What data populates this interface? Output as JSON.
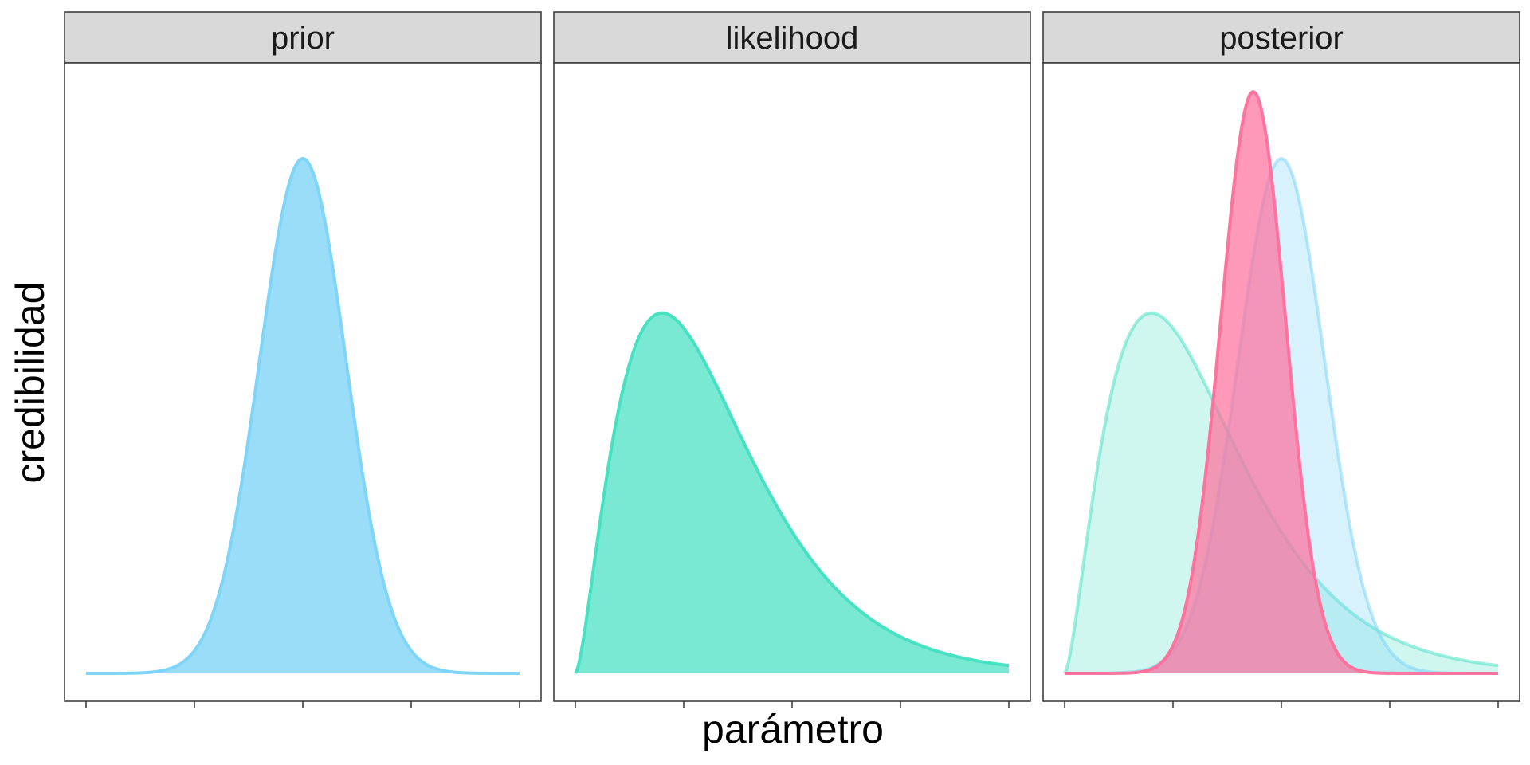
{
  "chart_data": {
    "type": "area",
    "xlabel": "parámetro",
    "ylabel": "credibilidad",
    "x_tick_labels": "none",
    "y_tick_labels": "none",
    "xlim": [
      0,
      1
    ],
    "ylim": [
      0,
      1.1
    ],
    "grid": false,
    "legend": "none",
    "panels": [
      {
        "strip_label": "prior",
        "series": [
          {
            "distribution": "normal",
            "mean": 0.5,
            "sd": 0.1,
            "peak": 1.0,
            "color": "#7FD5F7",
            "fill_opacity": 0.8
          }
        ]
      },
      {
        "strip_label": "likelihood",
        "series": [
          {
            "distribution": "gamma-shaped",
            "mode": 0.2,
            "shape": 2.6,
            "peak": 0.7,
            "color": "#40E0C0",
            "fill_opacity": 0.7
          }
        ]
      },
      {
        "strip_label": "posterior",
        "series": [
          {
            "distribution": "gamma-shaped",
            "mode": 0.2,
            "shape": 2.6,
            "peak": 0.7,
            "color": "#40E0C0",
            "fill_opacity": 0.25
          },
          {
            "distribution": "normal",
            "mean": 0.5,
            "sd": 0.1,
            "peak": 1.0,
            "color": "#7FD5F7",
            "fill_opacity": 0.3
          },
          {
            "distribution": "normal",
            "mean": 0.435,
            "sd": 0.075,
            "peak": 1.13,
            "color": "#FF6E9B",
            "fill_opacity": 0.7
          }
        ]
      }
    ]
  },
  "colors": {
    "strip_background": "#D9D9D9",
    "panel_border": "#333333",
    "tick": "#333333"
  }
}
